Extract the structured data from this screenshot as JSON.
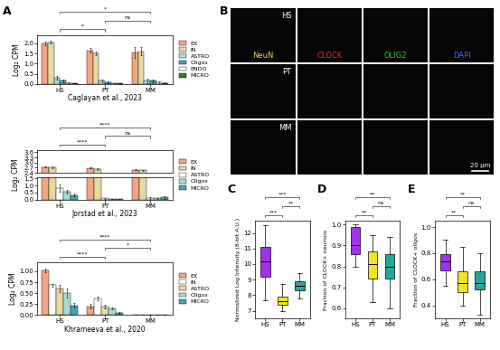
{
  "chart_data": [
    {
      "type": "bar",
      "panel": "A",
      "categories": [
        "HS",
        "PT",
        "MM"
      ],
      "ylabel": "Log₂ CPM",
      "xlabel": "Caglayan et al., 2023",
      "legend": "right",
      "ylim": [
        0,
        2.4
      ],
      "yticks": [
        {
          "value": 0,
          "label": "0.0"
        },
        0.5,
        {
          "value": 1,
          "label": "1.0"
        },
        1.5,
        {
          "value": 2,
          "label": "2.0"
        }
      ],
      "series": [
        {
          "name": "EX",
          "color": "#f4a582",
          "values": [
            2.0,
            1.65,
            1.55
          ],
          "errors": [
            0.08,
            0.1,
            0.25
          ]
        },
        {
          "name": "IN",
          "color": "#e6d9a2",
          "values": [
            2.05,
            1.5,
            1.6
          ],
          "errors": [
            0.06,
            0.1,
            0.2
          ]
        },
        {
          "name": "ASTRO",
          "color": "#a8ddd4",
          "values": [
            0.3,
            0.15,
            0.15
          ],
          "errors": [
            0.08,
            0.05,
            0.1
          ]
        },
        {
          "name": "Oligos",
          "color": "#3fa7b5",
          "values": [
            0.15,
            0.1,
            0.15
          ],
          "errors": [
            0.05,
            0.04,
            0.08
          ]
        },
        {
          "name": "ENDO",
          "color": "#ffffff",
          "values": [
            0.05,
            0.04,
            0.08
          ],
          "errors": [
            0.02,
            0.02,
            0.05
          ]
        },
        {
          "name": "MICRO",
          "color": "#2e7d32",
          "values": [
            0.04,
            0.02,
            0.05
          ],
          "errors": [
            0.02,
            0.01,
            0.03
          ]
        }
      ],
      "significance": [
        {
          "from": "HS",
          "to": "PT",
          "label": "*"
        },
        {
          "from": "PT",
          "to": "MM",
          "label": "ns"
        },
        {
          "from": "HS",
          "to": "MM",
          "label": "*"
        }
      ]
    },
    {
      "type": "bar",
      "categories": [
        "HS",
        "PT",
        "MM"
      ],
      "ylabel": "Log₂ CPM",
      "xlabel": "Jorstad et al., 2023",
      "legend": "right",
      "segments": [
        {
          "ylim": [
            0,
            1.6
          ],
          "yticks": [
            {
              "value": 0,
              "label": "0.0"
            },
            0.5,
            {
              "value": 1,
              "label": "1.0"
            },
            1.5
          ]
        },
        {
          "ylim": [
            2.4,
            3.7
          ],
          "yticks": [
            2.4,
            2.7,
            {
              "value": 3,
              "label": "3.0"
            },
            3.3,
            3.6
          ]
        }
      ],
      "series": [
        {
          "name": "EX",
          "color": "#f4a582",
          "values": [
            2.75,
            2.68,
            2.58
          ],
          "errors": [
            0.05,
            0.03,
            0.03
          ]
        },
        {
          "name": "IN",
          "color": "#e6d9a2",
          "values": [
            2.72,
            2.62,
            2.55
          ],
          "errors": [
            0.04,
            0.03,
            0.03
          ]
        },
        {
          "name": "ASTRO",
          "color": "#ffffff",
          "values": [
            0.8,
            0.08,
            0.1
          ],
          "errors": [
            0.25,
            0.02,
            0.05
          ]
        },
        {
          "name": "Oligos",
          "color": "#a8ddd4",
          "values": [
            0.55,
            0.05,
            0.08
          ],
          "errors": [
            0.15,
            0.02,
            0.05
          ]
        },
        {
          "name": "MICRO",
          "color": "#3fa7b5",
          "values": [
            0.3,
            0.02,
            0.15
          ],
          "errors": [
            0.1,
            0.01,
            0.08
          ]
        }
      ],
      "significance": [
        {
          "from": "HS",
          "to": "PT",
          "label": "****"
        },
        {
          "from": "PT",
          "to": "MM",
          "label": "ns"
        },
        {
          "from": "HS",
          "to": "MM",
          "label": "****"
        }
      ]
    },
    {
      "type": "bar",
      "categories": [
        "HS",
        "PT",
        "MM"
      ],
      "ylabel": "Log₂ CPM",
      "xlabel": "Khrameeva et al., 2020",
      "legend": "right",
      "ylim": [
        0,
        1.2
      ],
      "yticks": [
        {
          "value": 0,
          "label": "0.00"
        },
        {
          "value": 0.25,
          "label": "0.25"
        },
        {
          "value": 0.5,
          "label": "0.50"
        },
        {
          "value": 0.75,
          "label": "0.75"
        },
        {
          "value": 1,
          "label": "1.00"
        }
      ],
      "series": [
        {
          "name": "EX",
          "color": "#f4a582",
          "values": [
            1.02,
            0.2,
            0
          ],
          "errors": [
            0.04,
            0.05,
            0
          ]
        },
        {
          "name": "IN",
          "color": "#ffffff",
          "values": [
            0.68,
            0.38,
            0
          ],
          "errors": [
            0.03,
            0.04,
            0
          ]
        },
        {
          "name": "ASTRO",
          "color": "#e6d9a2",
          "values": [
            0.6,
            0.2,
            0
          ],
          "errors": [
            0.08,
            0.04,
            0
          ]
        },
        {
          "name": "Oligos",
          "color": "#a8ddd4",
          "values": [
            0.5,
            0.15,
            0
          ],
          "errors": [
            0.1,
            0.03,
            0
          ]
        },
        {
          "name": "MICRO",
          "color": "#3fa7b5",
          "values": [
            0.22,
            0.05,
            0
          ],
          "errors": [
            0.05,
            0.02,
            0
          ]
        }
      ],
      "significance": [
        {
          "from": "HS",
          "to": "PT",
          "label": "****"
        },
        {
          "from": "PT",
          "to": "MM",
          "label": "*"
        },
        {
          "from": "HS",
          "to": "MM",
          "label": "****"
        }
      ]
    },
    {
      "type": "box",
      "panel": "C",
      "categories": [
        "HS",
        "PT",
        "MM"
      ],
      "colors": [
        "#a233e8",
        "#f2e324",
        "#26a69a"
      ],
      "ylabel": "Normalized Log Intensity (8-bit A.U.)",
      "ylim": [
        6.5,
        12.8
      ],
      "yticks": [
        7,
        8,
        9,
        10,
        11,
        12
      ],
      "boxes": [
        {
          "whislo": 7.7,
          "q1": 9.2,
          "med": 10.2,
          "q3": 11.1,
          "whishi": 12.5
        },
        {
          "whislo": 7.0,
          "q1": 7.4,
          "med": 7.6,
          "q3": 7.9,
          "whishi": 8.7
        },
        {
          "whislo": 7.8,
          "q1": 8.3,
          "med": 8.6,
          "q3": 8.9,
          "whishi": 9.4
        }
      ],
      "significance": [
        {
          "from": "HS",
          "to": "PT",
          "label": "***"
        },
        {
          "from": "PT",
          "to": "MM",
          "label": "**"
        },
        {
          "from": "HS",
          "to": "MM",
          "label": "***"
        }
      ]
    },
    {
      "type": "box",
      "panel": "D",
      "categories": [
        "HS",
        "PT",
        "MM"
      ],
      "colors": [
        "#a233e8",
        "#f2e324",
        "#26a69a"
      ],
      "ylabel": "Fraction of CLOCK+ neurons",
      "ylim": [
        0.55,
        1.02
      ],
      "yticks": [
        0.6,
        0.7,
        0.8,
        0.9,
        {
          "value": 1,
          "label": "1.0"
        }
      ],
      "boxes": [
        {
          "whislo": 0.8,
          "q1": 0.86,
          "med": 0.9,
          "q3": 0.99,
          "whishi": 1.0
        },
        {
          "whislo": 0.63,
          "q1": 0.74,
          "med": 0.81,
          "q3": 0.87,
          "whishi": 0.95
        },
        {
          "whislo": 0.6,
          "q1": 0.74,
          "med": 0.8,
          "q3": 0.86,
          "whishi": 0.94
        }
      ],
      "significance": [
        {
          "from": "HS",
          "to": "PT",
          "label": "**"
        },
        {
          "from": "PT",
          "to": "MM",
          "label": "ns"
        },
        {
          "from": "HS",
          "to": "MM",
          "label": "**"
        }
      ]
    },
    {
      "type": "box",
      "panel": "E",
      "categories": [
        "HS",
        "PT",
        "MM"
      ],
      "colors": [
        "#a233e8",
        "#f2e324",
        "#26a69a"
      ],
      "ylabel": "Fraction of CLOCK+ oligos",
      "ylim": [
        0.3,
        1.05
      ],
      "yticks": [
        0.4,
        0.6,
        0.8,
        {
          "value": 1,
          "label": "1.0"
        }
      ],
      "boxes": [
        {
          "whislo": 0.55,
          "q1": 0.67,
          "med": 0.74,
          "q3": 0.79,
          "whishi": 0.9
        },
        {
          "whislo": 0.4,
          "q1": 0.5,
          "med": 0.57,
          "q3": 0.66,
          "whishi": 0.85
        },
        {
          "whislo": 0.33,
          "q1": 0.52,
          "med": 0.57,
          "q3": 0.66,
          "whishi": 0.8
        }
      ],
      "significance": [
        {
          "from": "HS",
          "to": "PT",
          "label": "**"
        },
        {
          "from": "PT",
          "to": "MM",
          "label": "ns"
        },
        {
          "from": "HS",
          "to": "MM",
          "label": "**"
        }
      ]
    }
  ],
  "image_panel": {
    "panel": "B",
    "rows": [
      "HS",
      "PT",
      "MM"
    ],
    "channels": [
      {
        "name": "NeuN",
        "color": "#e8d44d"
      },
      {
        "name": "CLOCK",
        "color": "#e03030"
      },
      {
        "name": "OLIG2",
        "color": "#3ec43e"
      },
      {
        "name": "DAPI",
        "color": "#4060ff"
      }
    ],
    "scale_bar": "20 μm"
  }
}
